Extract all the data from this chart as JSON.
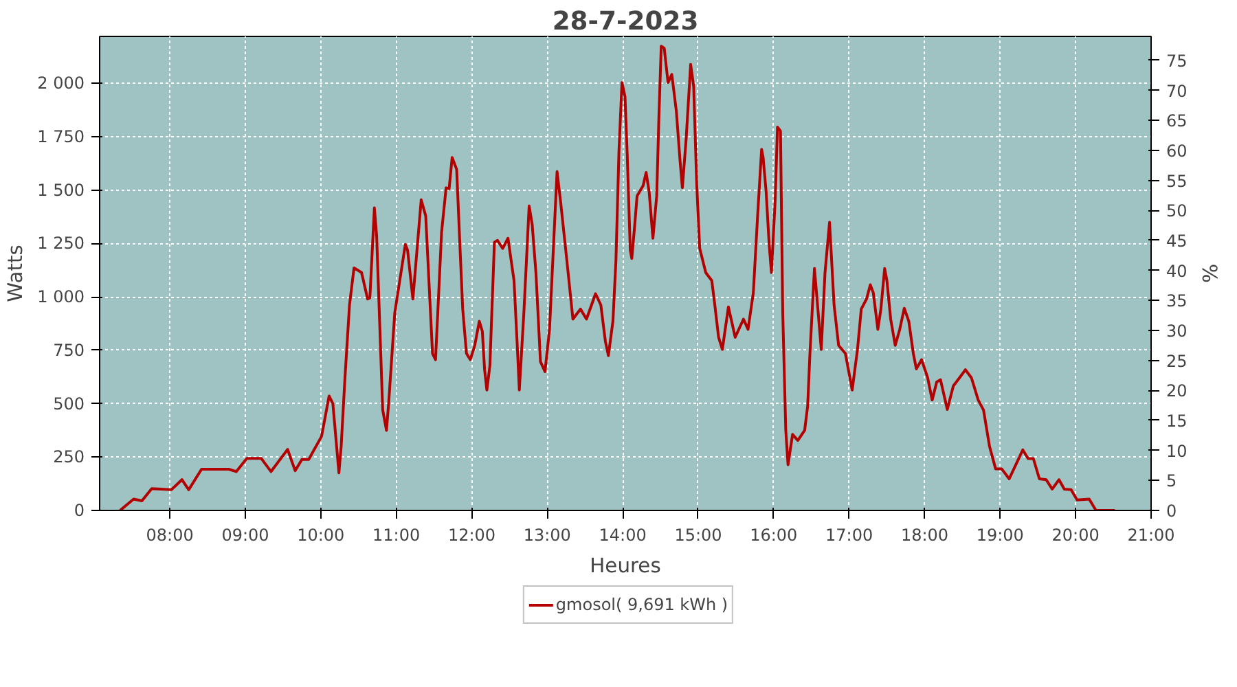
{
  "chart_data": {
    "type": "line",
    "title": "28-7-2023",
    "xlabel": "Heures",
    "ylabel": "Watts",
    "y2label": "%",
    "xlim": [
      7.07,
      21.0
    ],
    "xticks": [
      {
        "value": 8,
        "label": "08:00"
      },
      {
        "value": 9,
        "label": "09:00"
      },
      {
        "value": 10,
        "label": "10:00"
      },
      {
        "value": 11,
        "label": "11:00"
      },
      {
        "value": 12,
        "label": "12:00"
      },
      {
        "value": 13,
        "label": "13:00"
      },
      {
        "value": 14,
        "label": "14:00"
      },
      {
        "value": 15,
        "label": "15:00"
      },
      {
        "value": 16,
        "label": "16:00"
      },
      {
        "value": 17,
        "label": "17:00"
      },
      {
        "value": 18,
        "label": "18:00"
      },
      {
        "value": 19,
        "label": "19:00"
      },
      {
        "value": 20,
        "label": "20:00"
      },
      {
        "value": 21,
        "label": "21:00"
      }
    ],
    "ylim": [
      0,
      2220
    ],
    "yticks": [
      0,
      250,
      500,
      750,
      {
        "value": 1000,
        "label": "1 000"
      },
      {
        "value": 1250,
        "label": "1 250"
      },
      {
        "value": 1500,
        "label": "1 500"
      },
      {
        "value": 1750,
        "label": "1 750"
      },
      {
        "value": 2000,
        "label": "2 000"
      }
    ],
    "y2lim": [
      0,
      79
    ],
    "y2ticks": [
      0,
      5,
      10,
      15,
      20,
      25,
      30,
      35,
      40,
      45,
      50,
      55,
      60,
      65,
      70,
      75
    ],
    "grid": true,
    "legend": "bottom",
    "marker": "none",
    "line_style": "solid",
    "series": [
      {
        "name": "gmosol( 9,691 kWh )",
        "color": "#b30000",
        "x": [
          7.34,
          7.52,
          7.63,
          7.76,
          8.02,
          8.16,
          8.25,
          8.42,
          8.78,
          8.88,
          9.02,
          9.21,
          9.34,
          9.56,
          9.66,
          9.75,
          9.84,
          10.01,
          10.11,
          10.16,
          10.24,
          10.27,
          10.32,
          10.38,
          10.44,
          10.54,
          10.62,
          10.65,
          10.71,
          10.74,
          10.82,
          10.87,
          10.9,
          10.98,
          11.12,
          11.15,
          11.22,
          11.33,
          11.39,
          11.48,
          11.52,
          11.6,
          11.66,
          11.7,
          11.74,
          11.8,
          11.84,
          11.88,
          11.93,
          11.98,
          12.04,
          12.1,
          12.14,
          12.17,
          12.2,
          12.24,
          12.3,
          12.34,
          12.41,
          12.48,
          12.56,
          12.6,
          12.63,
          12.69,
          12.76,
          12.8,
          12.85,
          12.91,
          12.97,
          13.03,
          13.13,
          13.18,
          13.26,
          13.34,
          13.44,
          13.52,
          13.64,
          13.71,
          13.77,
          13.81,
          13.87,
          13.91,
          13.95,
          13.99,
          14.03,
          14.06,
          14.1,
          14.12,
          14.16,
          14.19,
          14.27,
          14.31,
          14.35,
          14.4,
          14.45,
          14.48,
          14.51,
          14.55,
          14.6,
          14.65,
          14.71,
          14.76,
          14.79,
          14.84,
          14.9,
          14.94,
          14.98,
          15.02,
          15.1,
          15.18,
          15.22,
          15.27,
          15.32,
          15.4,
          15.49,
          15.6,
          15.66,
          15.73,
          15.79,
          15.84,
          15.86,
          15.9,
          15.94,
          15.97,
          16.02,
          16.05,
          16.09,
          16.12,
          16.16,
          16.19,
          16.25,
          16.32,
          16.41,
          16.45,
          16.48,
          16.54,
          16.59,
          16.63,
          16.68,
          16.74,
          16.8,
          16.86,
          16.95,
          17.04,
          17.11,
          17.16,
          17.23,
          17.28,
          17.32,
          17.38,
          17.42,
          17.47,
          17.5,
          17.55,
          17.61,
          17.67,
          17.73,
          17.79,
          17.85,
          17.89,
          17.96,
          18.04,
          18.1,
          18.16,
          18.21,
          18.3,
          18.38,
          18.47,
          18.54,
          18.62,
          18.71,
          18.78,
          18.86,
          18.94,
          19.02,
          19.12,
          19.22,
          19.3,
          19.37,
          19.44,
          19.52,
          19.61,
          19.69,
          19.78,
          19.85,
          19.94,
          20.02,
          20.18,
          20.27,
          20.52
        ],
        "values": [
          0,
          53,
          45,
          102,
          97,
          144,
          97,
          193,
          193,
          182,
          244,
          244,
          182,
          286,
          186,
          239,
          239,
          347,
          536,
          500,
          176,
          301,
          621,
          962,
          1136,
          1114,
          990,
          995,
          1417,
          1284,
          471,
          375,
          508,
          926,
          1246,
          1218,
          990,
          1455,
          1379,
          735,
          706,
          1303,
          1511,
          1507,
          1653,
          1597,
          1265,
          943,
          735,
          706,
          773,
          886,
          839,
          659,
          564,
          678,
          1256,
          1265,
          1227,
          1275,
          1076,
          792,
          564,
          924,
          1426,
          1341,
          1114,
          697,
          650,
          848,
          1587,
          1436,
          1170,
          896,
          943,
          896,
          1015,
          962,
          792,
          725,
          886,
          1170,
          1682,
          2004,
          1938,
          1663,
          1218,
          1180,
          1341,
          1473,
          1521,
          1583,
          1492,
          1275,
          1473,
          1852,
          2174,
          2165,
          2004,
          2042,
          1871,
          1635,
          1511,
          1739,
          2089,
          1985,
          1530,
          1227,
          1114,
          1076,
          962,
          811,
          754,
          953,
          811,
          896,
          848,
          1019,
          1398,
          1691,
          1653,
          1492,
          1246,
          1114,
          1455,
          1795,
          1777,
          924,
          375,
          214,
          356,
          328,
          375,
          489,
          735,
          1133,
          924,
          754,
          1114,
          1350,
          962,
          773,
          735,
          564,
          754,
          943,
          990,
          1057,
          1019,
          848,
          943,
          1133,
          1076,
          896,
          773,
          848,
          947,
          886,
          735,
          663,
          706,
          621,
          517,
          602,
          612,
          473,
          583,
          625,
          659,
          621,
          517,
          470,
          299,
          195,
          195,
          148,
          223,
          284,
          243,
          243,
          148,
          144,
          100,
          144,
          100,
          97,
          49,
          53,
          0,
          0
        ]
      }
    ]
  }
}
